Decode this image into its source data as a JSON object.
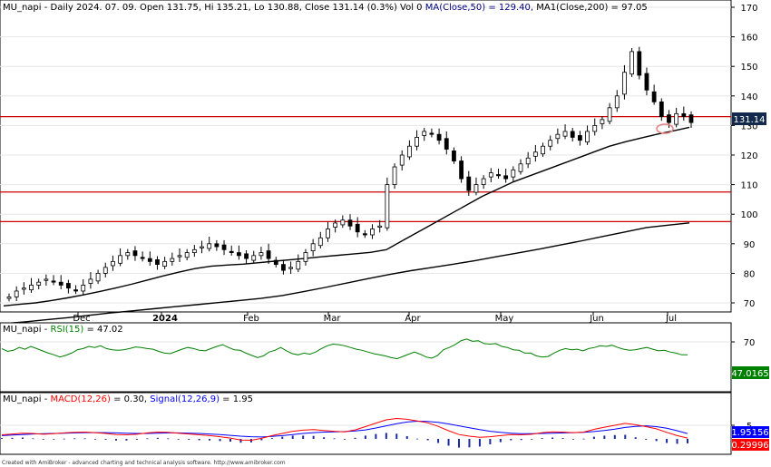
{
  "price_panel": {
    "symbol": "MU_napi",
    "header_segments": [
      {
        "text": "MU_napi - Daily 2024. 07. 09. Open 131.75, Hi 135.21, Lo 130.88, Close 131.14 (0.3%) Vol 0 ",
        "color": "#000000"
      },
      {
        "text": "MA(Close,50) = 129.40, ",
        "color": "#000080"
      },
      {
        "text": "MA1(Close,200) = 97.05",
        "color": "#000000"
      }
    ],
    "y_ticks": [
      "170",
      "160",
      "150",
      "140",
      "130",
      "120",
      "110",
      "100",
      "90",
      "80",
      "70"
    ],
    "last_price_label": "131.14",
    "x_labels": [
      "Dec",
      "2024",
      "Feb",
      "Mar",
      "Apr",
      "May",
      "Jun",
      "Jul"
    ]
  },
  "rsi_panel": {
    "header_segments": [
      {
        "text": "MU_napi - ",
        "color": "#000000"
      },
      {
        "text": "RSI(15)",
        "color": "#008000"
      },
      {
        "text": " = 47.02",
        "color": "#000000"
      }
    ],
    "y_ticks": [
      "70"
    ],
    "last_value_label": "47.0165"
  },
  "macd_panel": {
    "header_segments": [
      {
        "text": "MU_napi - ",
        "color": "#000000"
      },
      {
        "text": "MACD(12,26)",
        "color": "#ff0000"
      },
      {
        "text": " = 0.30, ",
        "color": "#000000"
      },
      {
        "text": "Signal(12,26,9)",
        "color": "#0000ff"
      },
      {
        "text": " = 1.95",
        "color": "#000000"
      }
    ],
    "y_ticks": [
      "5"
    ],
    "signal_label": "1.95156",
    "macd_label": "0.29996"
  },
  "footer": "Created with AmiBroker - advanced charting and technical analysis software. http://www.amibroker.com",
  "colors": {
    "rsi": "#008000",
    "macd": "#ff0000",
    "signal": "#0000ff",
    "hist": "#1a2aa0",
    "ma": "#000000",
    "hline": "#cc0000",
    "candle": "#000000",
    "last_price_bg": "#13294b"
  },
  "chart_data": [
    {
      "type": "candlestick",
      "title": "MU_napi - Daily",
      "y_axis": [
        70,
        170
      ],
      "x_axis_labels": [
        "Dec",
        "2024",
        "Feb",
        "Mar",
        "Apr",
        "May",
        "Jun",
        "Jul"
      ],
      "close_series": [
        72,
        74,
        75,
        76,
        77,
        78,
        77,
        76,
        75,
        74,
        76,
        78,
        80,
        82,
        84,
        86,
        87,
        86,
        85,
        84,
        83,
        84,
        85,
        86,
        87,
        88,
        89,
        90,
        89,
        88,
        87,
        86,
        85,
        86,
        87,
        85,
        83,
        81,
        82,
        84,
        87,
        90,
        92,
        95,
        97,
        98,
        96,
        94,
        93,
        95,
        96,
        110,
        116,
        120,
        123,
        126,
        128,
        127,
        125,
        122,
        118,
        112,
        108,
        110,
        112,
        114,
        113,
        112,
        115,
        117,
        119,
        121,
        123,
        125,
        127,
        128,
        126,
        125,
        128,
        130,
        132,
        136,
        140,
        148,
        155,
        147,
        142,
        138,
        133,
        131,
        134,
        133,
        131
      ],
      "ma_50": [
        69,
        69.5,
        70,
        70.8,
        71.7,
        72.7,
        73.8,
        75,
        76.3,
        77.7,
        79.1,
        80.4,
        81.6,
        82.4,
        82.8,
        83.1,
        83.6,
        84.1,
        84.6,
        85.1,
        85.6,
        86.1,
        86.6,
        87.1,
        88,
        91,
        94,
        97,
        100,
        103,
        106,
        108.5,
        111,
        113,
        115,
        117,
        119,
        121,
        123,
        124.5,
        125.8,
        127.1,
        128.2,
        129.4
      ],
      "ma_200": [
        63,
        63.6,
        64.3,
        65,
        65.8,
        66.6,
        67.3,
        68,
        68.7,
        69.4,
        70.1,
        70.8,
        71.5,
        72.5,
        73.8,
        75.2,
        76.7,
        78.2,
        79.6,
        80.9,
        82,
        83.1,
        84.3,
        85.6,
        86.9,
        88.2,
        89.6,
        91,
        92.5,
        94,
        95.5,
        96.3,
        97.05
      ],
      "horizontal_lines": [
        133,
        107.5,
        97.5
      ]
    },
    {
      "type": "line",
      "title": "RSI(15)",
      "y_ticks": [
        70
      ],
      "series": [
        {
          "name": "RSI(15)",
          "values": [
            58,
            53,
            55,
            60,
            57,
            62,
            58,
            54,
            50,
            47,
            43,
            46,
            50,
            56,
            58,
            62,
            60,
            63,
            58,
            56,
            55,
            56,
            58,
            61,
            60,
            58,
            57,
            53,
            50,
            49,
            53,
            57,
            60,
            58,
            55,
            54,
            58,
            62,
            65,
            60,
            56,
            55,
            50,
            46,
            42,
            45,
            52,
            55,
            60,
            54,
            49,
            47,
            50,
            48,
            52,
            58,
            63,
            66,
            65,
            63,
            60,
            57,
            55,
            52,
            49,
            47,
            45,
            42,
            40,
            44,
            48,
            52,
            48,
            43,
            41,
            46,
            56,
            60,
            65,
            72,
            75,
            71,
            72,
            67,
            66,
            67,
            62,
            60,
            56,
            55,
            50,
            50,
            45,
            43,
            44,
            50,
            55,
            58,
            56,
            57,
            54,
            58,
            60,
            63,
            62,
            64,
            60,
            57,
            55,
            56,
            58,
            60,
            57,
            54,
            55,
            52,
            50,
            47,
            47.02
          ]
        }
      ]
    },
    {
      "type": "line",
      "title": "MACD(12,26) / Signal(12,26,9)",
      "y_ticks": [
        5
      ],
      "series": [
        {
          "name": "MACD(12,26)",
          "values": [
            1.5,
            1.8,
            2.1,
            2.0,
            1.7,
            1.9,
            2.2,
            2.4,
            2.5,
            2.3,
            2.0,
            1.6,
            1.5,
            1.7,
            2.2,
            2.5,
            2.4,
            2.1,
            1.8,
            1.5,
            1.2,
            0.8,
            0.3,
            -0.4,
            -0.5,
            0.2,
            1.2,
            2.0,
            2.8,
            3.2,
            3.4,
            3.1,
            2.8,
            2.6,
            3.3,
            4.5,
            5.8,
            7.0,
            7.5,
            7.2,
            6.6,
            5.9,
            4.6,
            3.0,
            1.6,
            1.0,
            0.6,
            0.8,
            1.2,
            1.6,
            1.5,
            1.7,
            2.3,
            2.6,
            2.5,
            2.3,
            2.5,
            3.5,
            4.3,
            5.0,
            5.7,
            5.2,
            4.5,
            3.7,
            2.4,
            1.2,
            0.3
          ]
        },
        {
          "name": "Signal(12,26,9)",
          "values": [
            1.2,
            1.4,
            1.6,
            1.8,
            1.9,
            2.0,
            2.1,
            2.2,
            2.3,
            2.3,
            2.3,
            2.2,
            2.1,
            2.0,
            2.0,
            2.1,
            2.2,
            2.2,
            2.1,
            2.0,
            1.8,
            1.6,
            1.3,
            1.0,
            0.8,
            0.7,
            0.9,
            1.2,
            1.6,
            2.0,
            2.3,
            2.5,
            2.6,
            2.7,
            2.9,
            3.3,
            4.0,
            4.8,
            5.6,
            6.2,
            6.5,
            6.4,
            6.1,
            5.5,
            4.8,
            4.1,
            3.4,
            2.8,
            2.4,
            2.1,
            1.9,
            1.9,
            2.0,
            2.1,
            2.2,
            2.3,
            2.4,
            2.7,
            3.1,
            3.6,
            4.2,
            4.6,
            4.8,
            4.5,
            3.9,
            3.0,
            1.95
          ]
        }
      ],
      "histogram": [
        0.3,
        0.4,
        0.5,
        0.2,
        -0.2,
        -0.1,
        0.1,
        0.2,
        0.2,
        0.0,
        -0.3,
        -0.6,
        -0.6,
        -0.3,
        0.2,
        0.4,
        0.2,
        -0.1,
        -0.3,
        -0.5,
        -0.6,
        -0.8,
        -1.0,
        -1.4,
        -1.3,
        -0.5,
        0.3,
        0.8,
        1.2,
        1.2,
        1.1,
        0.6,
        0.2,
        -0.1,
        0.4,
        1.2,
        1.8,
        2.2,
        1.9,
        1.0,
        0.1,
        -0.5,
        -1.5,
        -2.5,
        -3.2,
        -3.1,
        -2.8,
        -2.0,
        -1.2,
        -0.5,
        -0.4,
        -0.2,
        0.3,
        0.5,
        0.3,
        0.0,
        0.1,
        0.8,
        1.2,
        1.4,
        1.5,
        0.6,
        -0.3,
        -0.8,
        -1.5,
        -1.8,
        -1.65
      ]
    }
  ]
}
